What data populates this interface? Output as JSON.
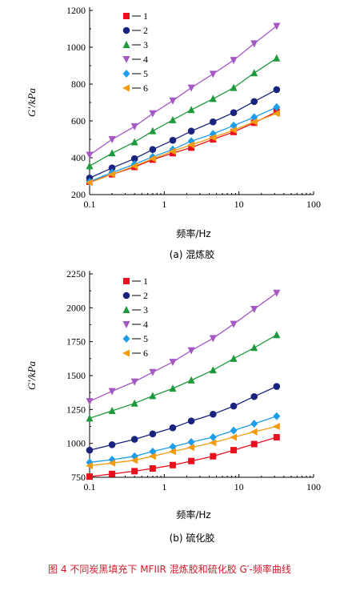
{
  "chart_data": [
    {
      "type": "line",
      "subtitle": "(a) 混炼胶",
      "xlabel": "频率/Hz",
      "ylabel": "G′/kPa",
      "xscale": "log",
      "xlim": [
        0.1,
        100
      ],
      "ylim": [
        200,
        1200
      ],
      "xticks": [
        "0.1",
        "1",
        "10",
        "100"
      ],
      "yticks": [
        "200",
        "400",
        "600",
        "800",
        "1000",
        "1200"
      ],
      "x": [
        0.1,
        0.2,
        0.4,
        0.7,
        1.3,
        2.3,
        4.5,
        8.5,
        16,
        32
      ],
      "legend_position": "top-left",
      "series": [
        {
          "name": "1",
          "marker": "square",
          "color": "#e8101e",
          "values": [
            270,
            310,
            350,
            390,
            425,
            455,
            500,
            540,
            590,
            650
          ]
        },
        {
          "name": "2",
          "marker": "circle",
          "color": "#1a237e",
          "values": [
            290,
            345,
            395,
            445,
            495,
            545,
            595,
            645,
            705,
            770
          ]
        },
        {
          "name": "3",
          "marker": "triangle-up",
          "color": "#1e9a3c",
          "values": [
            355,
            425,
            485,
            545,
            605,
            660,
            720,
            780,
            860,
            940
          ]
        },
        {
          "name": "4",
          "marker": "triangle-down",
          "color": "#a557c4",
          "values": [
            415,
            500,
            570,
            640,
            710,
            780,
            855,
            930,
            1020,
            1115
          ]
        },
        {
          "name": "5",
          "marker": "diamond",
          "color": "#1e9de8",
          "values": [
            270,
            320,
            365,
            405,
            445,
            490,
            530,
            575,
            620,
            675
          ]
        },
        {
          "name": "6",
          "marker": "triangle-left",
          "color": "#f39c12",
          "values": [
            265,
            310,
            355,
            395,
            435,
            470,
            510,
            550,
            595,
            640
          ]
        }
      ]
    },
    {
      "type": "line",
      "subtitle": "(b) 硫化胶",
      "xlabel": "频率/Hz",
      "ylabel": "G′/kPa",
      "xscale": "log",
      "xlim": [
        0.1,
        100
      ],
      "ylim": [
        750,
        2250
      ],
      "xticks": [
        "0.1",
        "1",
        "10",
        "100"
      ],
      "yticks": [
        "750",
        "1000",
        "1250",
        "1500",
        "1750",
        "2000",
        "2250"
      ],
      "x": [
        0.1,
        0.2,
        0.4,
        0.7,
        1.3,
        2.3,
        4.5,
        8.5,
        16,
        32
      ],
      "legend_position": "top-left",
      "series": [
        {
          "name": "1",
          "marker": "square",
          "color": "#e8101e",
          "values": [
            755,
            775,
            795,
            815,
            840,
            870,
            905,
            950,
            995,
            1045
          ]
        },
        {
          "name": "2",
          "marker": "circle",
          "color": "#1a237e",
          "values": [
            950,
            990,
            1030,
            1070,
            1115,
            1165,
            1215,
            1275,
            1345,
            1420
          ]
        },
        {
          "name": "3",
          "marker": "triangle-up",
          "color": "#1e9a3c",
          "values": [
            1185,
            1240,
            1295,
            1350,
            1405,
            1465,
            1540,
            1625,
            1705,
            1800
          ]
        },
        {
          "name": "4",
          "marker": "triangle-down",
          "color": "#a557c4",
          "values": [
            1310,
            1385,
            1455,
            1525,
            1600,
            1685,
            1775,
            1880,
            1990,
            2110
          ]
        },
        {
          "name": "5",
          "marker": "diamond",
          "color": "#1e9de8",
          "values": [
            860,
            880,
            905,
            940,
            975,
            1010,
            1045,
            1095,
            1145,
            1200
          ]
        },
        {
          "name": "6",
          "marker": "triangle-left",
          "color": "#f39c12",
          "values": [
            835,
            855,
            875,
            905,
            940,
            970,
            1005,
            1045,
            1085,
            1125
          ]
        }
      ]
    }
  ],
  "caption": "图 4   不同炭黑填充下 MFIIR 混炼胶和硫化胶 G′-频率曲线"
}
